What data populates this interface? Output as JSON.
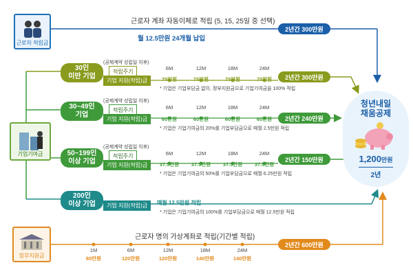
{
  "worker": {
    "label": "근로자 적립금",
    "title": "근로자 계좌 자동이체로 적립 (5, 15, 25일 중 선택)",
    "subtitle": "월 12.5만원 24개월 납입",
    "total": "2년간 300만원"
  },
  "company": {
    "label": "기업기여금"
  },
  "government": {
    "label": "정부지원금"
  },
  "common": {
    "condition": "(공제계약 성립일 이후)",
    "cycle": "적립주기",
    "support": "기업 지원(적립)금",
    "months": [
      "6M",
      "12M",
      "18M",
      "24M"
    ]
  },
  "rows": [
    {
      "group": "30인\n미만 기업",
      "values": [
        "75만원",
        "75만원",
        "75만원",
        "75만원"
      ],
      "total": "2년간 300만원",
      "note": "* 기업은 기업부담금 없이, 정부지원금으로 기업기여금을 100% 적립"
    },
    {
      "group": "30~49인\n기업",
      "values": [
        "60만원",
        "60만원",
        "60만원",
        "60만원"
      ],
      "total": "2년간 240만원",
      "note": "* 기업은 기업기여금의 20%를 기업부담금으로 매월 2.5만원 적립"
    },
    {
      "group": "50~199인\n이상 기업",
      "values": [
        "37.5만원",
        "37.5만원",
        "37.5만원",
        "37.5만원"
      ],
      "total": "2년간 150만원",
      "note": "* 기업은 기업기여금의 50%를 기업부담금으로 매월 6.25만원 적립"
    }
  ],
  "row200": {
    "group": "200인\n이상 기업",
    "support": "기업 지원(적립)금",
    "monthly": "매월 12.5만원 적립",
    "note": "* 기업은 기업기여금의 100%를 기업부담금으로 매월 12.5만원 적립"
  },
  "gov": {
    "title": "근로자 명의 가상계좌로 적립(기간별 적립)",
    "months": [
      "1M",
      "6M",
      "12M",
      "18M",
      "24M"
    ],
    "values": [
      "80만원",
      "120만원",
      "120만원",
      "140만원",
      "140만원"
    ],
    "total": "2년간 600만원"
  },
  "goal": {
    "title": "청년내일\n채움공제",
    "amount": "1,200",
    "unit": "만원",
    "period": "2년"
  },
  "colors": {
    "olive": "#8a9b1d",
    "green": "#3f9a3a",
    "teal": "#1e8a8a",
    "blue": "#1b5fa8",
    "orange": "#e28a1c"
  }
}
